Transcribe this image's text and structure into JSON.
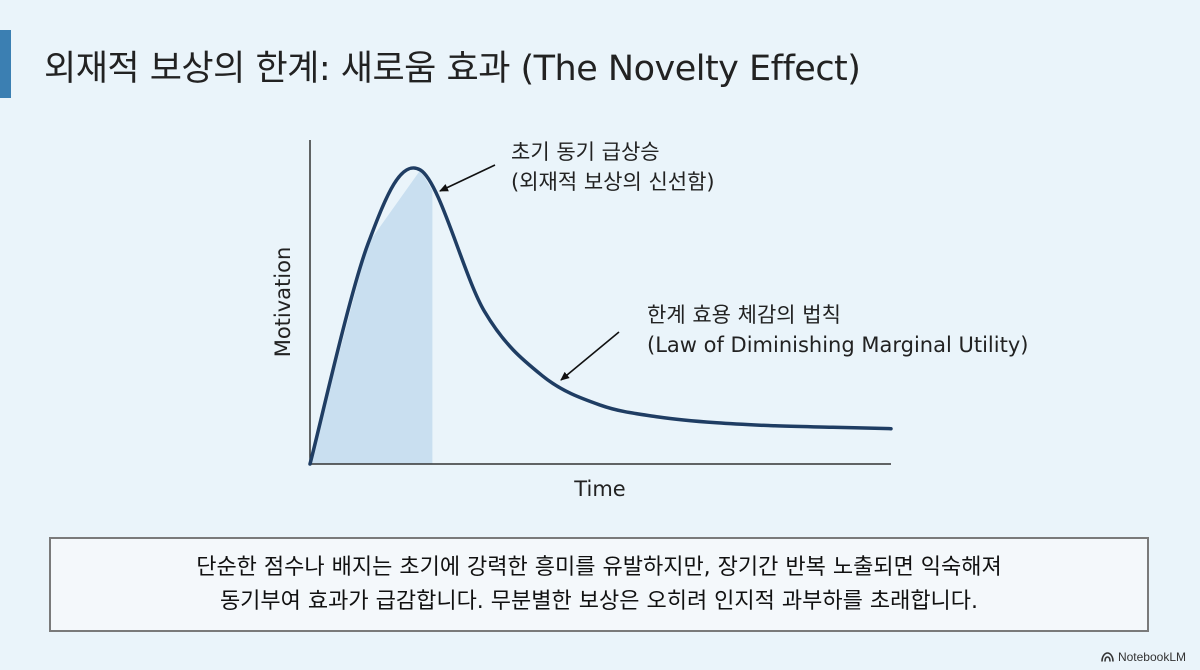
{
  "slide": {
    "title": "외재적 보상의 한계: 새로움 효과 (The Novelty Effect)"
  },
  "chart_data": {
    "type": "line",
    "xlabel": "Time",
    "ylabel": "Motivation",
    "series": [
      {
        "x": [
          0,
          0.1,
          0.19,
          0.3,
          0.4,
          0.5,
          0.6,
          0.7,
          0.8,
          0.9,
          1.0
        ],
        "values": [
          0,
          0.75,
          1.0,
          0.52,
          0.3,
          0.2,
          0.16,
          0.14,
          0.13,
          0.125,
          0.12
        ]
      }
    ],
    "shaded_region": {
      "from": 0,
      "to": 0.19
    },
    "annotations": [
      {
        "lines": [
          "초기 동기 급상승",
          "(외재적 보상의 신선함)"
        ],
        "target": "peak"
      },
      {
        "lines": [
          "한계 효용 체감의 법칙",
          "(Law of Diminishing Marginal Utility)"
        ],
        "target": "decay"
      }
    ]
  },
  "callout": {
    "line1": "단순한 점수나 배지는 초기에 강력한 흥미를 유발하지만, 장기간 반복 노출되면 익숙해져",
    "line2": "동기부여 효과가 급감합니다. 무분별한 보상은 오히려 인지적 과부하를 초래합니다."
  },
  "brand": {
    "name": "NotebookLM",
    "icon": "notebooklm-logo-icon"
  },
  "colors": {
    "accent": "#3b7fb2",
    "curve": "#1f3d63",
    "fill": "#c9dff0"
  }
}
